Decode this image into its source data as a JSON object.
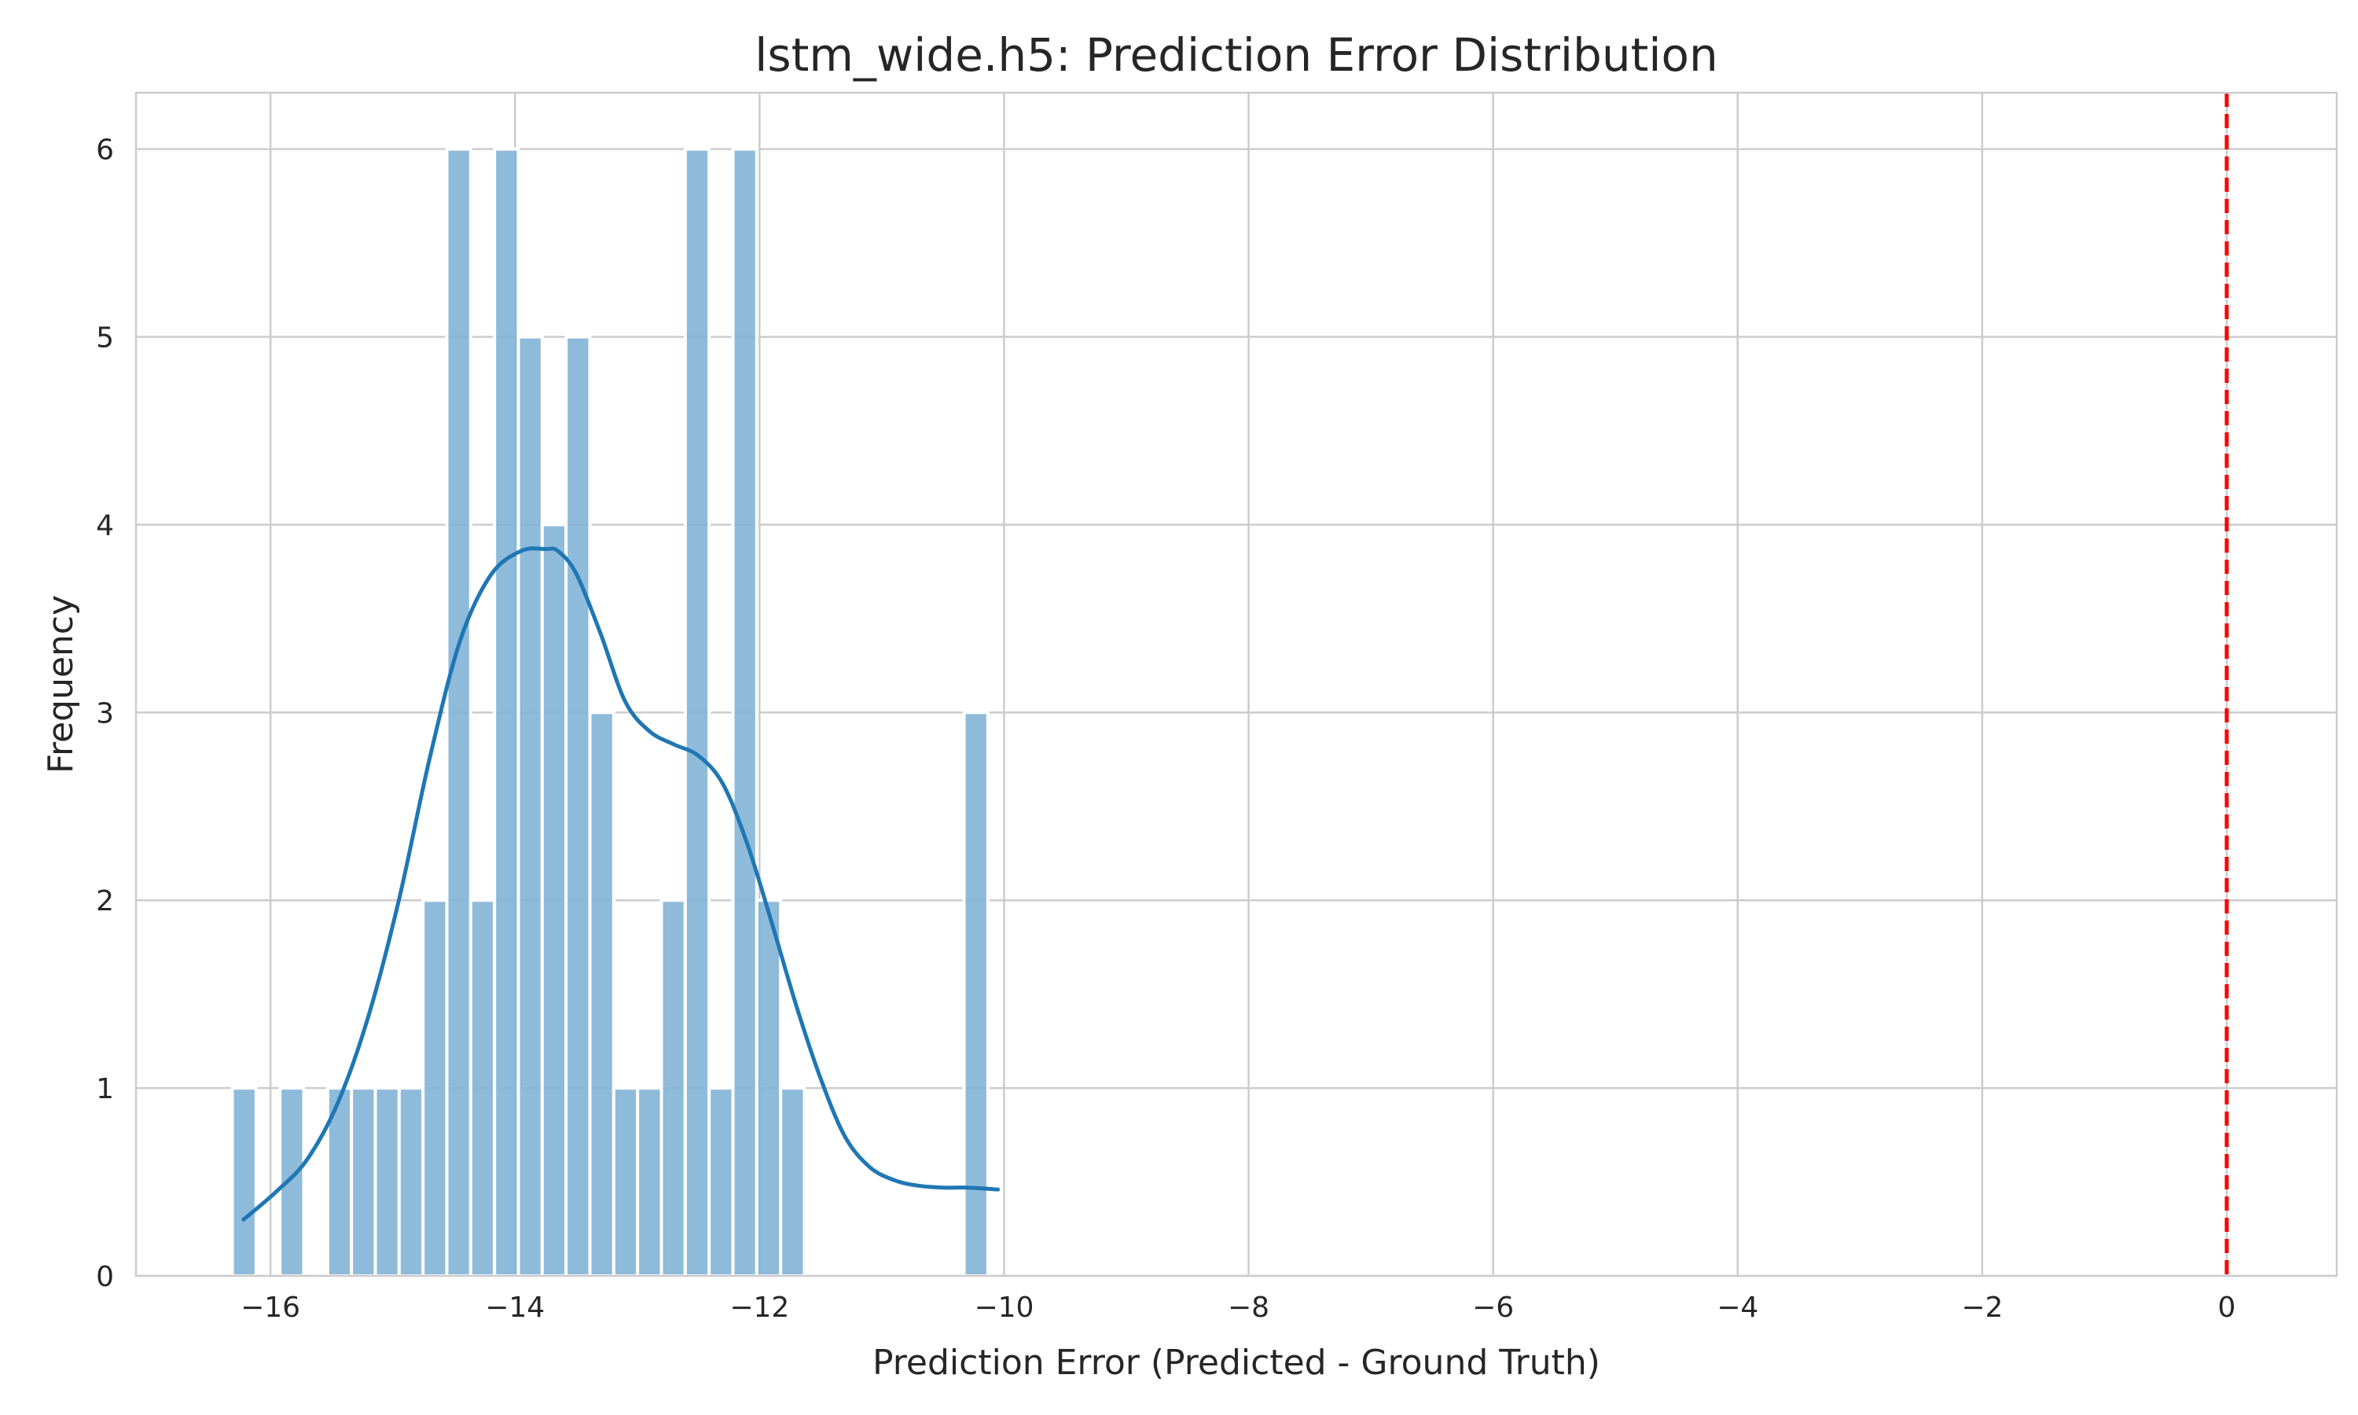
{
  "chart_data": {
    "type": "bar",
    "title": "lstm_wide.h5: Prediction Error Distribution",
    "xlabel": "Prediction Error (Predicted - Ground Truth)",
    "ylabel": "Frequency",
    "xlim": [
      -17.1,
      0.9
    ],
    "ylim": [
      0,
      6.3
    ],
    "grid": true,
    "legend": "none",
    "bin_width": 0.195,
    "xticks": [
      {
        "value": -16,
        "label": "−16"
      },
      {
        "value": -14,
        "label": "−14"
      },
      {
        "value": -12,
        "label": "−12"
      },
      {
        "value": -10,
        "label": "−10"
      },
      {
        "value": -8,
        "label": "−8"
      },
      {
        "value": -6,
        "label": "−6"
      },
      {
        "value": -4,
        "label": "−4"
      },
      {
        "value": -2,
        "label": "−2"
      },
      {
        "value": 0,
        "label": "0"
      }
    ],
    "yticks": [
      {
        "value": 0,
        "label": "0"
      },
      {
        "value": 1,
        "label": "1"
      },
      {
        "value": 2,
        "label": "2"
      },
      {
        "value": 3,
        "label": "3"
      },
      {
        "value": 4,
        "label": "4"
      },
      {
        "value": 5,
        "label": "5"
      },
      {
        "value": 6,
        "label": "6"
      }
    ],
    "bars": [
      {
        "x": -16.215,
        "count": 1
      },
      {
        "x": -15.825,
        "count": 1
      },
      {
        "x": -15.435,
        "count": 1
      },
      {
        "x": -15.24,
        "count": 1
      },
      {
        "x": -15.045,
        "count": 1
      },
      {
        "x": -14.85,
        "count": 1
      },
      {
        "x": -14.655,
        "count": 2
      },
      {
        "x": -14.46,
        "count": 6
      },
      {
        "x": -14.265,
        "count": 2
      },
      {
        "x": -14.07,
        "count": 6
      },
      {
        "x": -13.875,
        "count": 5
      },
      {
        "x": -13.68,
        "count": 4
      },
      {
        "x": -13.485,
        "count": 5
      },
      {
        "x": -13.29,
        "count": 3
      },
      {
        "x": -13.095,
        "count": 1
      },
      {
        "x": -12.9,
        "count": 1
      },
      {
        "x": -12.705,
        "count": 2
      },
      {
        "x": -12.51,
        "count": 6
      },
      {
        "x": -12.315,
        "count": 1
      },
      {
        "x": -12.12,
        "count": 6
      },
      {
        "x": -11.925,
        "count": 2
      },
      {
        "x": -11.73,
        "count": 1
      },
      {
        "x": -10.23,
        "count": 3
      }
    ],
    "kde": {
      "x": [
        -16.22,
        -15.95,
        -15.7,
        -15.45,
        -15.2,
        -14.95,
        -14.7,
        -14.45,
        -14.2,
        -13.95,
        -13.75,
        -13.65,
        -13.5,
        -13.3,
        -13.1,
        -12.9,
        -12.7,
        -12.5,
        -12.3,
        -12.1,
        -11.9,
        -11.7,
        -11.5,
        -11.3,
        -11.1,
        -10.9,
        -10.7,
        -10.5,
        -10.3,
        -10.05
      ],
      "y": [
        0.3,
        0.45,
        0.62,
        0.92,
        1.38,
        2.0,
        2.75,
        3.38,
        3.73,
        3.86,
        3.87,
        3.86,
        3.74,
        3.42,
        3.06,
        2.9,
        2.83,
        2.77,
        2.62,
        2.3,
        1.88,
        1.44,
        1.05,
        0.74,
        0.58,
        0.51,
        0.48,
        0.47,
        0.47,
        0.46
      ]
    },
    "reference_line": {
      "x": 0,
      "color": "#ff0000",
      "style": "dashed"
    }
  }
}
